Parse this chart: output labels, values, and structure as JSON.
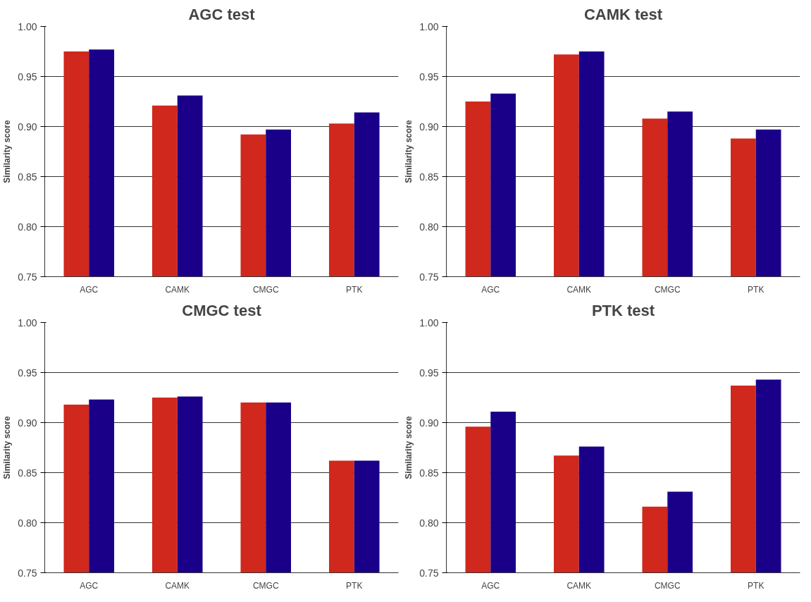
{
  "chart_data": [
    {
      "type": "bar",
      "title": "AGC test",
      "ylabel": "Similarity score",
      "categories": [
        "AGC",
        "CAMK",
        "CMGC",
        "PTK"
      ],
      "series": [
        {
          "color": "#d0281c",
          "values": [
            0.975,
            0.921,
            0.892,
            0.903
          ]
        },
        {
          "color": "#1a0088",
          "values": [
            0.977,
            0.931,
            0.897,
            0.914
          ]
        }
      ],
      "ylim": [
        0.75,
        1.0
      ],
      "yticks": [
        {
          "value": 0.75,
          "label": "0.75"
        },
        {
          "value": 0.8,
          "label": "0.80"
        },
        {
          "value": 0.85,
          "label": "0.85"
        },
        {
          "value": 0.9,
          "label": "0.90"
        },
        {
          "value": 0.95,
          "label": "0.95"
        },
        {
          "value": 1.0,
          "label": "1.00"
        }
      ],
      "grid": "y"
    },
    {
      "type": "bar",
      "title": "CAMK test",
      "ylabel": "Similarity score",
      "categories": [
        "AGC",
        "CAMK",
        "CMGC",
        "PTK"
      ],
      "series": [
        {
          "color": "#d0281c",
          "values": [
            0.925,
            0.972,
            0.908,
            0.888
          ]
        },
        {
          "color": "#1a0088",
          "values": [
            0.933,
            0.975,
            0.915,
            0.897
          ]
        }
      ],
      "ylim": [
        0.75,
        1.0
      ],
      "yticks": [
        {
          "value": 0.75,
          "label": "0.75"
        },
        {
          "value": 0.8,
          "label": "0.80"
        },
        {
          "value": 0.85,
          "label": "0.85"
        },
        {
          "value": 0.9,
          "label": "0.90"
        },
        {
          "value": 0.95,
          "label": "0.95"
        },
        {
          "value": 1.0,
          "label": "1.00"
        }
      ],
      "grid": "y"
    },
    {
      "type": "bar",
      "title": "CMGC test",
      "ylabel": "Similarity score",
      "categories": [
        "AGC",
        "CAMK",
        "CMGC",
        "PTK"
      ],
      "series": [
        {
          "color": "#d0281c",
          "values": [
            0.918,
            0.925,
            0.92,
            0.862
          ]
        },
        {
          "color": "#1a0088",
          "values": [
            0.923,
            0.926,
            0.92,
            0.862
          ]
        }
      ],
      "ylim": [
        0.75,
        1.0
      ],
      "yticks": [
        {
          "value": 0.75,
          "label": "0.75"
        },
        {
          "value": 0.8,
          "label": "0.80"
        },
        {
          "value": 0.85,
          "label": "0.85"
        },
        {
          "value": 0.9,
          "label": "0.90"
        },
        {
          "value": 0.95,
          "label": "0.95"
        },
        {
          "value": 1.0,
          "label": "1.00"
        }
      ],
      "grid": "y"
    },
    {
      "type": "bar",
      "title": "PTK test",
      "ylabel": "Similarity score",
      "categories": [
        "AGC",
        "CAMK",
        "CMGC",
        "PTK"
      ],
      "series": [
        {
          "color": "#d0281c",
          "values": [
            0.896,
            0.867,
            0.816,
            0.937
          ]
        },
        {
          "color": "#1a0088",
          "values": [
            0.911,
            0.876,
            0.831,
            0.943
          ]
        }
      ],
      "ylim": [
        0.75,
        1.0
      ],
      "yticks": [
        {
          "value": 0.75,
          "label": "0.75"
        },
        {
          "value": 0.8,
          "label": "0.80"
        },
        {
          "value": 0.85,
          "label": "0.85"
        },
        {
          "value": 0.9,
          "label": "0.90"
        },
        {
          "value": 0.95,
          "label": "0.95"
        },
        {
          "value": 1.0,
          "label": "1.00"
        }
      ],
      "grid": "y"
    }
  ]
}
